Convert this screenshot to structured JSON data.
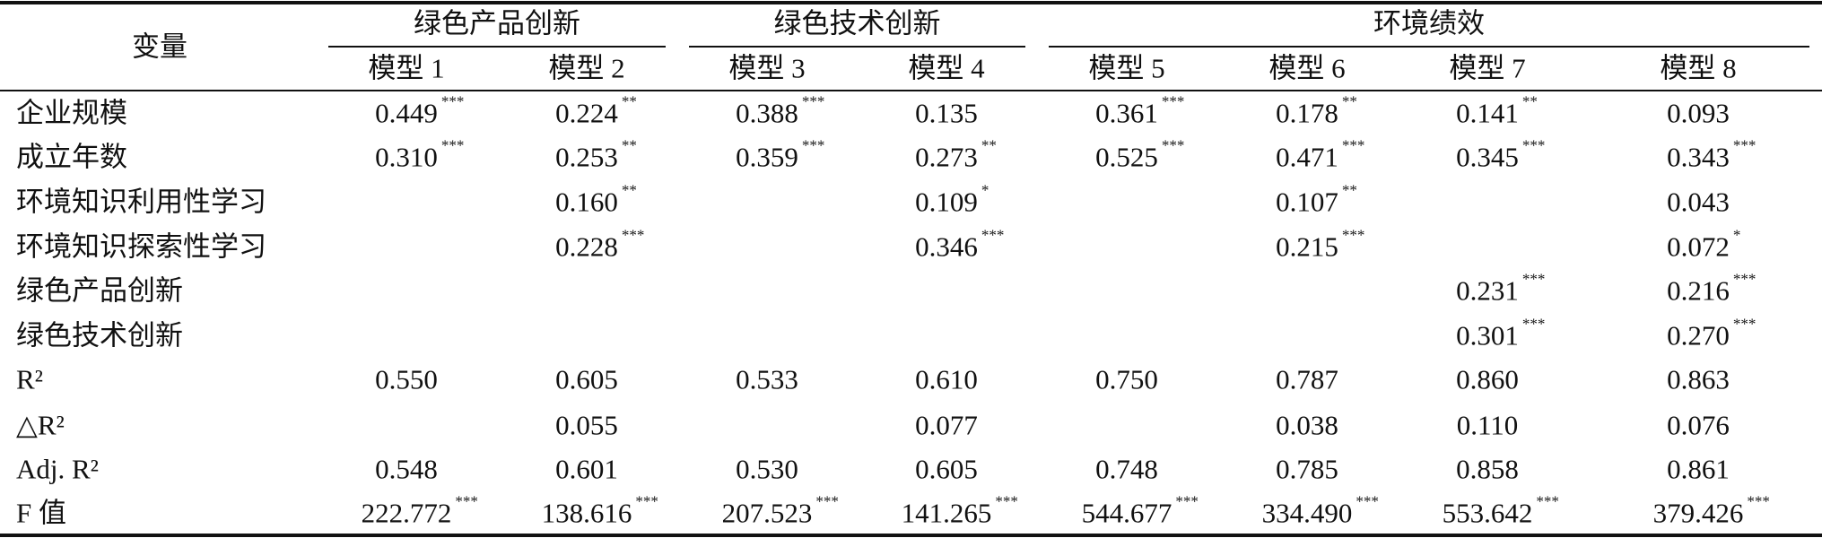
{
  "table": {
    "corner": "变量",
    "groups": [
      {
        "label": "绿色产品创新",
        "models": [
          "模型 1",
          "模型 2"
        ]
      },
      {
        "label": "绿色技术创新",
        "models": [
          "模型 3",
          "模型 4"
        ]
      },
      {
        "label": "环境绩效",
        "models": [
          "模型 5",
          "模型 6",
          "模型 7",
          "模型 8"
        ]
      }
    ],
    "rows": [
      {
        "label": "企业规模",
        "cells": [
          {
            "v": "0.449",
            "sig": "***"
          },
          {
            "v": "0.224",
            "sig": "**"
          },
          {
            "v": "0.388",
            "sig": "***"
          },
          {
            "v": "0.135"
          },
          {
            "v": "0.361",
            "sig": "***"
          },
          {
            "v": "0.178",
            "sig": "**"
          },
          {
            "v": "0.141",
            "sig": "**"
          },
          {
            "v": "0.093"
          }
        ]
      },
      {
        "label": "成立年数",
        "cells": [
          {
            "v": "0.310",
            "sig": "***"
          },
          {
            "v": "0.253",
            "sig": "**"
          },
          {
            "v": "0.359",
            "sig": "***"
          },
          {
            "v": "0.273",
            "sig": "**"
          },
          {
            "v": "0.525",
            "sig": "***"
          },
          {
            "v": "0.471",
            "sig": "***"
          },
          {
            "v": "0.345",
            "sig": "***"
          },
          {
            "v": "0.343",
            "sig": "***"
          }
        ]
      },
      {
        "label": "环境知识利用性学习",
        "cells": [
          null,
          {
            "v": "0.160",
            "sig": "**"
          },
          null,
          {
            "v": "0.109",
            "sig": "*"
          },
          null,
          {
            "v": "0.107",
            "sig": "**"
          },
          null,
          {
            "v": "0.043"
          }
        ]
      },
      {
        "label": "环境知识探索性学习",
        "cells": [
          null,
          {
            "v": "0.228",
            "sig": "***"
          },
          null,
          {
            "v": "0.346",
            "sig": "***"
          },
          null,
          {
            "v": "0.215",
            "sig": "***"
          },
          null,
          {
            "v": "0.072",
            "sig": "*"
          }
        ]
      },
      {
        "label": "绿色产品创新",
        "cells": [
          null,
          null,
          null,
          null,
          null,
          null,
          {
            "v": "0.231",
            "sig": "***"
          },
          {
            "v": "0.216",
            "sig": "***"
          }
        ]
      },
      {
        "label": "绿色技术创新",
        "cells": [
          null,
          null,
          null,
          null,
          null,
          null,
          {
            "v": "0.301",
            "sig": "***"
          },
          {
            "v": "0.270",
            "sig": "***"
          }
        ]
      },
      {
        "label": "R²",
        "cells": [
          {
            "v": "0.550"
          },
          {
            "v": "0.605"
          },
          {
            "v": "0.533"
          },
          {
            "v": "0.610"
          },
          {
            "v": "0.750"
          },
          {
            "v": "0.787"
          },
          {
            "v": "0.860"
          },
          {
            "v": "0.863"
          }
        ]
      },
      {
        "label": "△R²",
        "cells": [
          null,
          {
            "v": "0.055"
          },
          null,
          {
            "v": "0.077"
          },
          null,
          {
            "v": "0.038"
          },
          {
            "v": "0.110"
          },
          {
            "v": "0.076"
          }
        ]
      },
      {
        "label": "Adj. R²",
        "cells": [
          {
            "v": "0.548"
          },
          {
            "v": "0.601"
          },
          {
            "v": "0.530"
          },
          {
            "v": "0.605"
          },
          {
            "v": "0.748"
          },
          {
            "v": "0.785"
          },
          {
            "v": "0.858"
          },
          {
            "v": "0.861"
          }
        ]
      },
      {
        "label": "F 值",
        "cells": [
          {
            "v": "222.772",
            "sig": "***"
          },
          {
            "v": "138.616",
            "sig": "***"
          },
          {
            "v": "207.523",
            "sig": "***"
          },
          {
            "v": "141.265",
            "sig": "***"
          },
          {
            "v": "544.677",
            "sig": "***"
          },
          {
            "v": "334.490",
            "sig": "***"
          },
          {
            "v": "553.642",
            "sig": "***"
          },
          {
            "v": "379.426",
            "sig": "***"
          }
        ]
      }
    ]
  }
}
